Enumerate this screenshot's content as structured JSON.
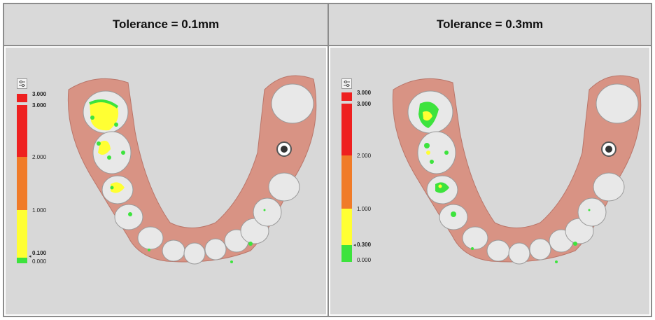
{
  "panels": [
    {
      "title": "Tolerance = 0.1mm",
      "legend": {
        "top_label": "3.000",
        "labels": [
          "3.000",
          "2.000",
          "1.000",
          "0.100",
          "0.000"
        ],
        "tolerance_marker": "0.100"
      }
    },
    {
      "title": "Tolerance = 0.3mm",
      "legend": {
        "top_label": "3.000",
        "labels": [
          "3.000",
          "2.000",
          "1.000",
          "0.300",
          "0.000"
        ],
        "tolerance_marker": "0.300"
      }
    }
  ],
  "colors": {
    "red": "#ee2020",
    "orange": "#f07b28",
    "yellow": "#ffff33",
    "green": "#3de33d",
    "gum": "#d89384",
    "tooth": "#e8e8e8",
    "background": "#d8d8d8",
    "header": "#d9d9d9"
  },
  "icons": [
    "legend-settings-icon"
  ]
}
